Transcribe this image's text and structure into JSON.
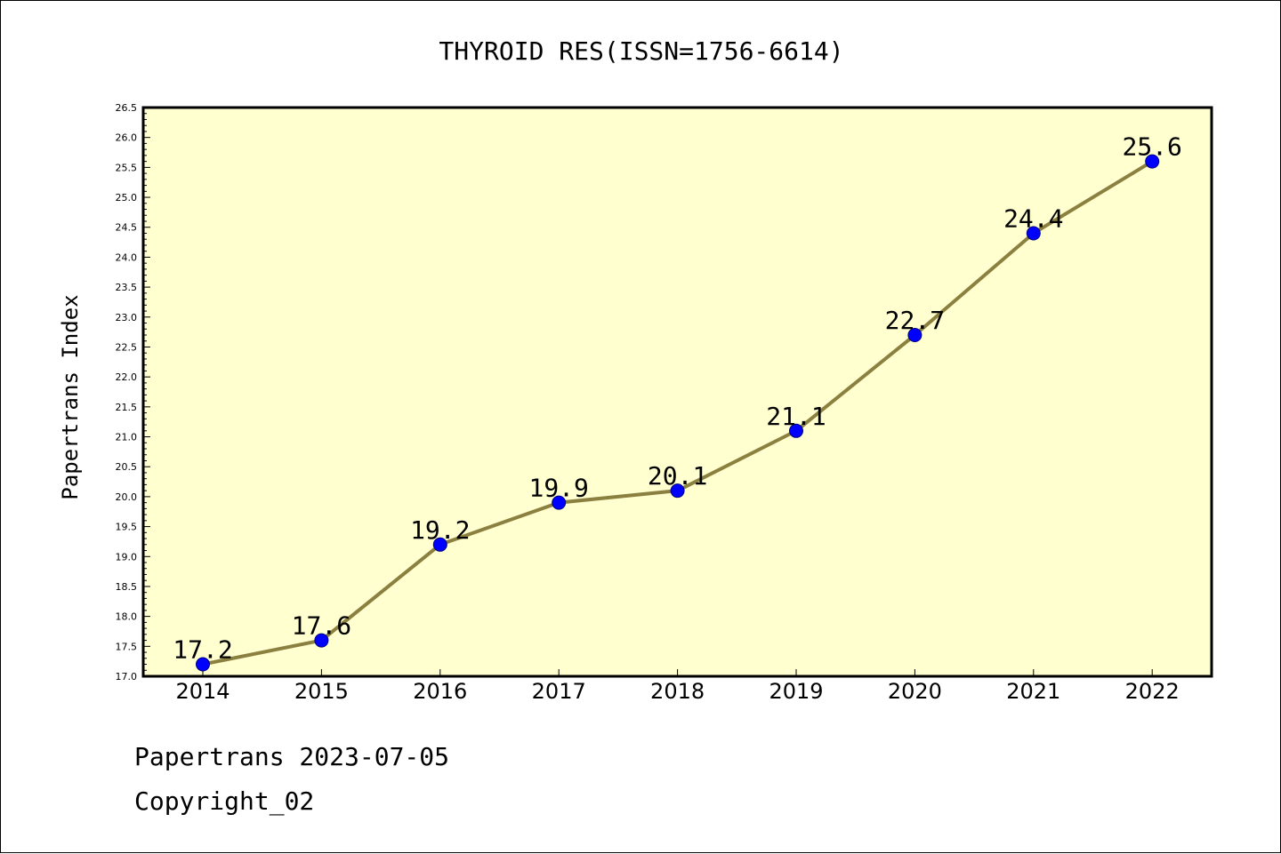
{
  "chart_data": {
    "type": "line",
    "title": "THYROID RES(ISSN=1756-6614)",
    "xlabel": "",
    "ylabel": "Papertrans Index",
    "categories": [
      "2014",
      "2015",
      "2016",
      "2017",
      "2018",
      "2019",
      "2020",
      "2021",
      "2022"
    ],
    "series": [
      {
        "values": [
          17.2,
          17.6,
          19.2,
          19.9,
          20.1,
          21.1,
          22.7,
          24.4,
          25.6
        ]
      }
    ],
    "data_labels": [
      "17.2",
      "17.6",
      "19.2",
      "19.9",
      "20.1",
      "21.1",
      "22.7",
      "24.4",
      "25.6"
    ],
    "ylim": [
      17.0,
      26.5
    ],
    "yticks": [
      "17.0",
      "17.5",
      "18.0",
      "18.5",
      "19.0",
      "19.5",
      "20.0",
      "20.5",
      "21.0",
      "21.5",
      "22.0",
      "22.5",
      "23.0",
      "23.5",
      "24.0",
      "24.5",
      "25.0",
      "25.5",
      "26.0",
      "26.5"
    ],
    "grid": false,
    "legend": "none",
    "colors": {
      "plot_background": "#ffffd0",
      "line": "#8b8040",
      "marker_fill": "#0000ff",
      "marker_edge": "#000080"
    }
  },
  "footer": {
    "line1": "Papertrans 2023-07-05",
    "line2": "Copyright_02"
  }
}
